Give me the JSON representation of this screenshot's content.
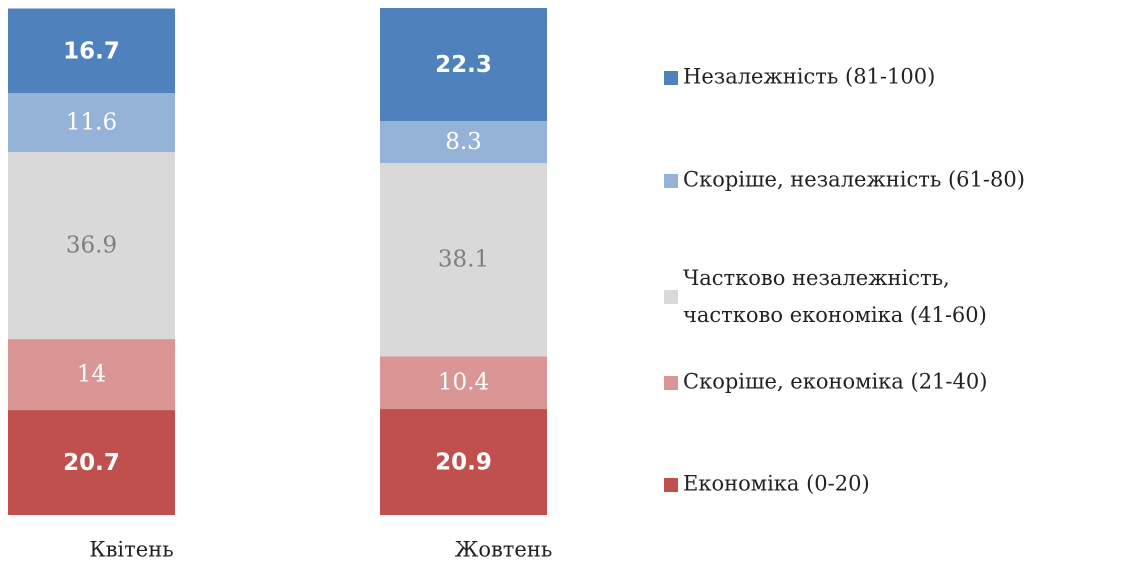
{
  "chart_data": {
    "type": "stacked-bar",
    "categories": [
      "Квітень",
      "Жовтень"
    ],
    "series": [
      {
        "name": "Незалежність (81-100)",
        "color": "#4f81bd",
        "values": [
          16.7,
          22.3
        ]
      },
      {
        "name": "Скоріше, незалежність (61-80)",
        "color": "#95b3d7",
        "values": [
          11.6,
          8.3
        ]
      },
      {
        "name": "Частково незалежність, частково економіка (41-60)",
        "color": "#d9d9d9",
        "values": [
          36.9,
          38.1
        ]
      },
      {
        "name": "Скоріше, економіка (21-40)",
        "color": "#da9694",
        "values": [
          14,
          10.4
        ]
      },
      {
        "name": "Економіка (0-20)",
        "color": "#c0504d",
        "values": [
          20.7,
          20.9
        ]
      }
    ]
  }
}
